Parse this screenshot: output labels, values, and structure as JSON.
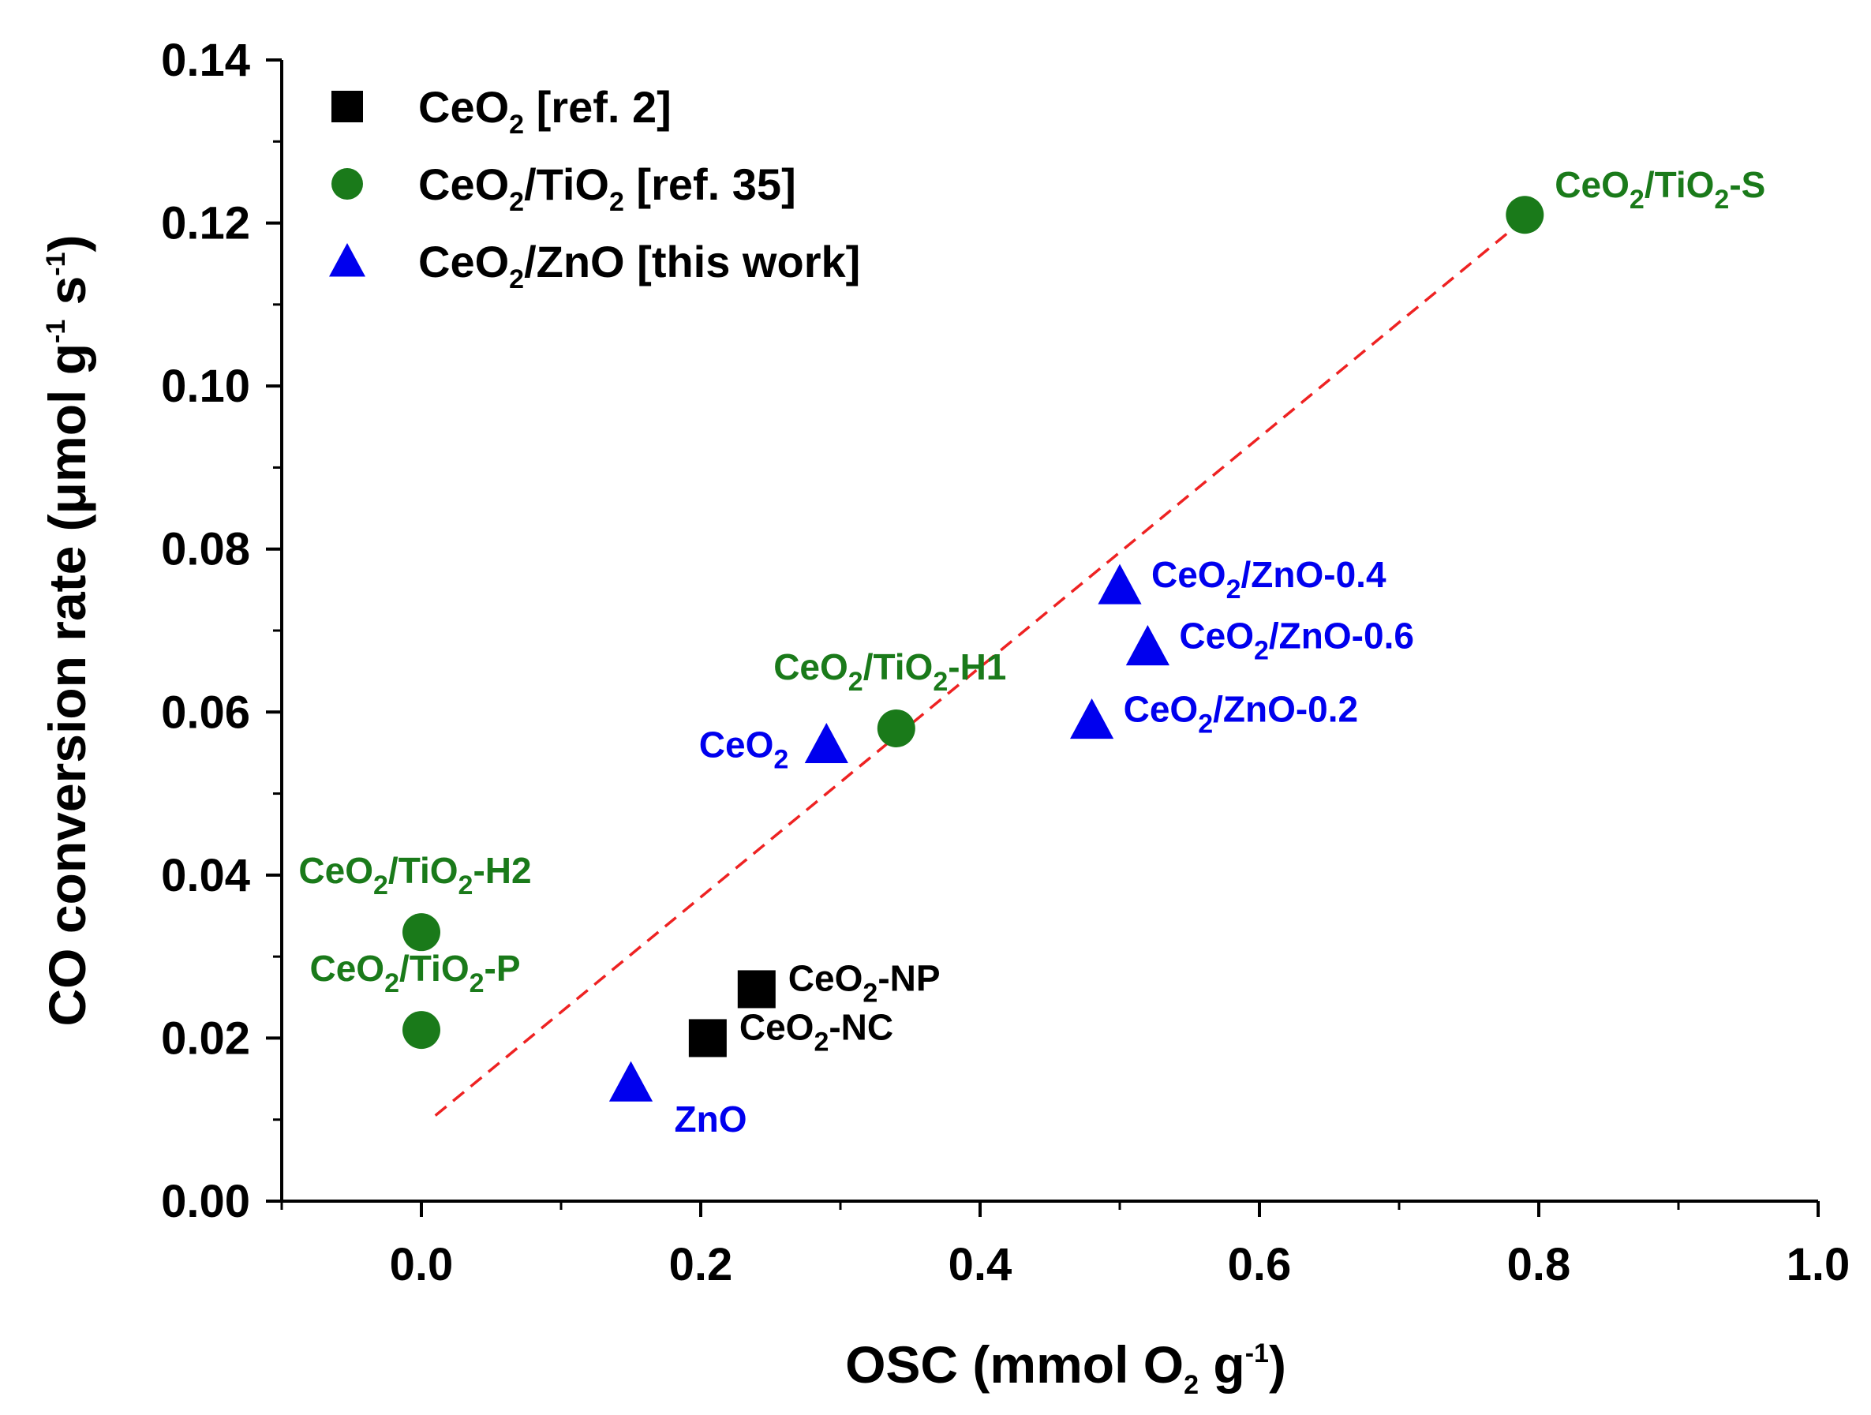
{
  "chart_data": {
    "type": "scatter",
    "title": "",
    "xlabel": {
      "base": "OSC (mmol O",
      "sub": "2",
      "tail": " g",
      "sup": "-1",
      "end": ")"
    },
    "ylabel": {
      "base": "CO conversion rate (μmol g",
      "sup1": "-1",
      "mid": " s",
      "sup2": "-1",
      "end": ")"
    },
    "xlim": [
      -0.1,
      1.0
    ],
    "ylim": [
      0.0,
      0.14
    ],
    "x_ticks": [
      0.0,
      0.2,
      0.4,
      0.6,
      0.8,
      1.0
    ],
    "x_tick_labels": [
      "0.0",
      "0.2",
      "0.4",
      "0.6",
      "0.8",
      "1.0"
    ],
    "y_ticks": [
      0.0,
      0.02,
      0.04,
      0.06,
      0.08,
      0.1,
      0.12,
      0.14
    ],
    "y_tick_labels": [
      "0.00",
      "0.02",
      "0.04",
      "0.06",
      "0.08",
      "0.10",
      "0.12",
      "0.14"
    ],
    "legend_position": "top-left",
    "series": [
      {
        "name": "CeO2 [ref. 2]",
        "legend": [
          {
            "t": "CeO"
          },
          {
            "t": "2",
            "sub": true
          },
          {
            "t": " [ref. 2]"
          }
        ],
        "marker": "square",
        "color": "#000000",
        "points": [
          {
            "x": 0.24,
            "y": 0.026,
            "label": [
              {
                "t": "CeO"
              },
              {
                "t": "2",
                "sub": true
              },
              {
                "t": "-NP"
              }
            ],
            "label_pos": "right"
          },
          {
            "x": 0.205,
            "y": 0.02,
            "label": [
              {
                "t": "CeO"
              },
              {
                "t": "2",
                "sub": true
              },
              {
                "t": "-NC"
              }
            ],
            "label_pos": "right"
          }
        ]
      },
      {
        "name": "CeO2/TiO2 [ref. 35]",
        "legend": [
          {
            "t": "CeO"
          },
          {
            "t": "2",
            "sub": true
          },
          {
            "t": "/TiO"
          },
          {
            "t": "2",
            "sub": true
          },
          {
            "t": " [ref. 35]"
          }
        ],
        "marker": "circle",
        "color": "#1a7a1a",
        "points": [
          {
            "x": 0.79,
            "y": 0.121,
            "label": [
              {
                "t": "CeO"
              },
              {
                "t": "2",
                "sub": true
              },
              {
                "t": "/TiO"
              },
              {
                "t": "2",
                "sub": true
              },
              {
                "t": "-S"
              }
            ],
            "label_pos": "right-up"
          },
          {
            "x": 0.34,
            "y": 0.058,
            "label": [
              {
                "t": "CeO"
              },
              {
                "t": "2",
                "sub": true
              },
              {
                "t": "/TiO"
              },
              {
                "t": "2",
                "sub": true
              },
              {
                "t": "-H1"
              }
            ],
            "label_pos": "above"
          },
          {
            "x": 0.0,
            "y": 0.033,
            "label": [
              {
                "t": "CeO"
              },
              {
                "t": "2",
                "sub": true
              },
              {
                "t": "/TiO"
              },
              {
                "t": "2",
                "sub": true
              },
              {
                "t": "-H2"
              }
            ],
            "label_pos": "above"
          },
          {
            "x": 0.0,
            "y": 0.021,
            "label": [
              {
                "t": "CeO"
              },
              {
                "t": "2",
                "sub": true
              },
              {
                "t": "/TiO"
              },
              {
                "t": "2",
                "sub": true
              },
              {
                "t": "-P"
              }
            ],
            "label_pos": "above"
          }
        ]
      },
      {
        "name": "CeO2/ZnO [this work]",
        "legend": [
          {
            "t": "CeO"
          },
          {
            "t": "2",
            "sub": true
          },
          {
            "t": "/ZnO [this work]"
          }
        ],
        "marker": "triangle",
        "color": "#0000ee",
        "points": [
          {
            "x": 0.5,
            "y": 0.0755,
            "label": [
              {
                "t": "CeO"
              },
              {
                "t": "2",
                "sub": true
              },
              {
                "t": "/ZnO-0.4"
              }
            ],
            "label_pos": "right"
          },
          {
            "x": 0.52,
            "y": 0.068,
            "label": [
              {
                "t": "CeO"
              },
              {
                "t": "2",
                "sub": true
              },
              {
                "t": "/ZnO-0.6"
              }
            ],
            "label_pos": "right"
          },
          {
            "x": 0.48,
            "y": 0.059,
            "label": [
              {
                "t": "CeO"
              },
              {
                "t": "2",
                "sub": true
              },
              {
                "t": "/ZnO-0.2"
              }
            ],
            "label_pos": "right"
          },
          {
            "x": 0.29,
            "y": 0.056,
            "label": [
              {
                "t": "CeO"
              },
              {
                "t": "2",
                "sub": true
              }
            ],
            "label_pos": "left"
          },
          {
            "x": 0.15,
            "y": 0.0145,
            "label": [
              {
                "t": "ZnO"
              }
            ],
            "label_pos": "right-down"
          }
        ]
      }
    ],
    "trendline": {
      "style": "dashed",
      "color": "#ee2222",
      "x": [
        0.01,
        0.79
      ],
      "y": [
        0.0105,
        0.1205
      ]
    }
  }
}
